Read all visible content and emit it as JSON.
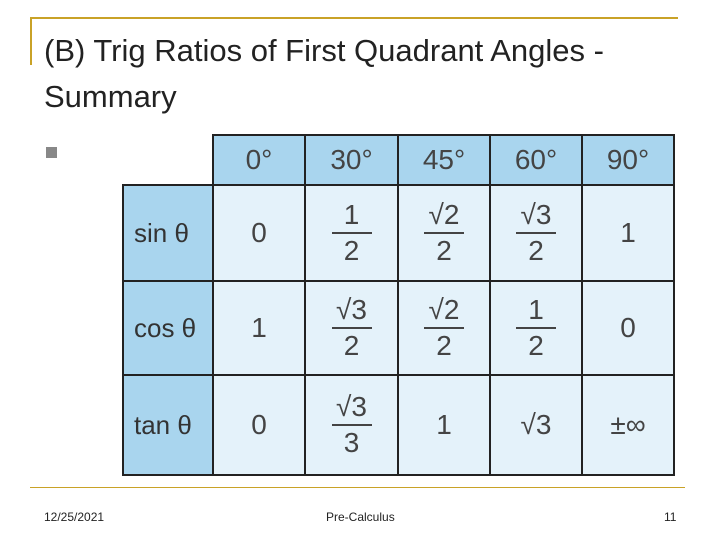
{
  "header": {
    "title": "(B) Trig Ratios of First Quadrant Angles - Summary"
  },
  "table": {
    "columns": [
      "0°",
      "30°",
      "45°",
      "60°",
      "90°"
    ],
    "rows": [
      {
        "label": "sin θ",
        "cells": [
          "0",
          {
            "num": "1",
            "den": "2"
          },
          {
            "num": "√2",
            "den": "2"
          },
          {
            "num": "√3",
            "den": "2"
          },
          "1"
        ]
      },
      {
        "label": "cos θ",
        "cells": [
          "1",
          {
            "num": "√3",
            "den": "2"
          },
          {
            "num": "√2",
            "den": "2"
          },
          {
            "num": "1",
            "den": "2"
          },
          "0"
        ]
      },
      {
        "label": "tan θ",
        "cells": [
          "0",
          {
            "num": "√3",
            "den": "3"
          },
          "1",
          "√3",
          "±∞"
        ]
      }
    ]
  },
  "footer": {
    "date": "12/25/2021",
    "course": "Pre-Calculus",
    "page": "11"
  }
}
